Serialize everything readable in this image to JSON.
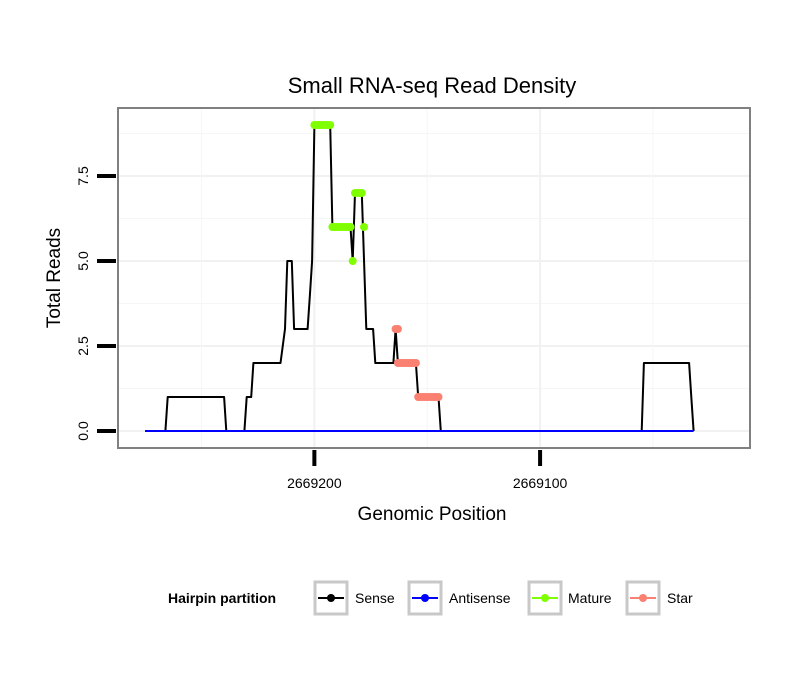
{
  "chart_data": {
    "type": "line",
    "title": "Small RNA-seq Read Density",
    "xlabel": "Genomic Position",
    "ylabel": "Total Reads",
    "xlim": [
      2669287,
      2669007
    ],
    "ylim": [
      -0.5,
      9.5
    ],
    "x_reversed": true,
    "grid": true,
    "yticks": [
      {
        "value": 0,
        "label": "0.0"
      },
      {
        "value": 2.5,
        "label": "2.5"
      },
      {
        "value": 5,
        "label": "5.0"
      },
      {
        "value": 7.5,
        "label": "7.5"
      }
    ],
    "xticks": [
      {
        "value": 2669200,
        "label": "2669200"
      },
      {
        "value": 2669100,
        "label": "2669100"
      }
    ],
    "series": [
      {
        "name": "Sense",
        "color": "#000000",
        "points": [
          [
            2669275,
            0
          ],
          [
            2669266,
            0
          ],
          [
            2669265,
            1
          ],
          [
            2669240,
            1
          ],
          [
            2669239,
            0
          ],
          [
            2669231,
            0
          ],
          [
            2669230,
            1
          ],
          [
            2669228,
            1
          ],
          [
            2669227,
            2
          ],
          [
            2669215,
            2
          ],
          [
            2669213,
            3
          ],
          [
            2669212,
            5
          ],
          [
            2669210,
            5
          ],
          [
            2669209,
            3
          ],
          [
            2669203,
            3
          ],
          [
            2669202,
            4
          ],
          [
            2669201,
            5
          ],
          [
            2669200,
            9
          ],
          [
            2669193,
            9
          ],
          [
            2669192,
            6
          ],
          [
            2669184,
            6
          ],
          [
            2669183,
            5
          ],
          [
            2669182,
            7
          ],
          [
            2669179,
            7
          ],
          [
            2669177,
            3
          ],
          [
            2669174,
            3
          ],
          [
            2669173,
            2
          ],
          [
            2669165,
            2
          ],
          [
            2669164,
            3
          ],
          [
            2669163,
            2
          ],
          [
            2669155,
            2
          ],
          [
            2669154,
            1
          ],
          [
            2669145,
            1
          ],
          [
            2669144,
            0
          ],
          [
            2669055,
            0
          ],
          [
            2669054,
            2
          ],
          [
            2669034,
            2
          ],
          [
            2669033,
            1
          ],
          [
            2669032,
            0
          ]
        ]
      },
      {
        "name": "Antisense",
        "color": "#0000ff",
        "points": [
          [
            2669275,
            0
          ],
          [
            2669032,
            0
          ]
        ]
      },
      {
        "name": "Mature",
        "color": "#7fff00",
        "points": [
          [
            2669200,
            9
          ],
          [
            2669199,
            9
          ],
          [
            2669198,
            9
          ],
          [
            2669197,
            9
          ],
          [
            2669196,
            9
          ],
          [
            2669195,
            9
          ],
          [
            2669194,
            9
          ],
          [
            2669193,
            9
          ],
          [
            2669192,
            6
          ],
          [
            2669191,
            6
          ],
          [
            2669190,
            6
          ],
          [
            2669189,
            6
          ],
          [
            2669188,
            6
          ],
          [
            2669187,
            6
          ],
          [
            2669186,
            6
          ],
          [
            2669185,
            6
          ],
          [
            2669184,
            6
          ],
          [
            2669183,
            5
          ],
          [
            2669182,
            7
          ],
          [
            2669181,
            7
          ],
          [
            2669180,
            7
          ],
          [
            2669179,
            7
          ],
          [
            2669178,
            6
          ]
        ]
      },
      {
        "name": "Star",
        "color": "#fa8072",
        "points": [
          [
            2669164,
            3
          ],
          [
            2669163,
            3
          ],
          [
            2669163,
            2
          ],
          [
            2669162,
            2
          ],
          [
            2669161,
            2
          ],
          [
            2669160,
            2
          ],
          [
            2669159,
            2
          ],
          [
            2669158,
            2
          ],
          [
            2669157,
            2
          ],
          [
            2669156,
            2
          ],
          [
            2669155,
            2
          ],
          [
            2669154,
            1
          ],
          [
            2669153,
            1
          ],
          [
            2669152,
            1
          ],
          [
            2669151,
            1
          ],
          [
            2669150,
            1
          ],
          [
            2669149,
            1
          ],
          [
            2669148,
            1
          ],
          [
            2669147,
            1
          ],
          [
            2669146,
            1
          ],
          [
            2669145,
            1
          ]
        ]
      }
    ],
    "legend": {
      "title": "Hairpin partition",
      "position": "bottom",
      "entries": [
        {
          "label": "Sense",
          "color": "#000000"
        },
        {
          "label": "Antisense",
          "color": "#0000ff"
        },
        {
          "label": "Mature",
          "color": "#7fff00"
        },
        {
          "label": "Star",
          "color": "#fa8072"
        }
      ]
    }
  }
}
